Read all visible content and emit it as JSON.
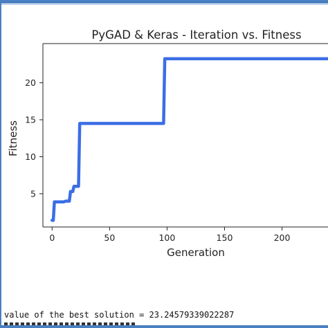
{
  "colors": {
    "frame": "#4a7fc1",
    "line": "#3b6ee6",
    "axis": "#222222",
    "text": "#222222"
  },
  "output": {
    "best_solution_text": "value of the best solution = 23.24579339022287"
  },
  "chart_data": {
    "type": "line",
    "title": "PyGAD & Keras - Iteration vs. Fitness",
    "xlabel": "Generation",
    "ylabel": "Fitness",
    "xlim": [
      -8,
      240
    ],
    "ylim": [
      0.5,
      25.3
    ],
    "x_ticks": [
      0,
      50,
      100,
      150,
      200
    ],
    "y_ticks": [
      5,
      10,
      15,
      20
    ],
    "grid": false,
    "series": [
      {
        "x": [
          0,
          1,
          2,
          3,
          5,
          8,
          10,
          12,
          13,
          15,
          16,
          17,
          18,
          19,
          20,
          22,
          23,
          24,
          25,
          97,
          98,
          240
        ],
        "values": [
          1.4,
          1.4,
          3.9,
          3.9,
          3.9,
          3.9,
          3.9,
          4.0,
          4.0,
          4.0,
          5.3,
          5.3,
          5.3,
          6.0,
          6.0,
          6.0,
          6.0,
          14.5,
          14.5,
          14.5,
          23.25,
          23.25
        ]
      }
    ]
  }
}
